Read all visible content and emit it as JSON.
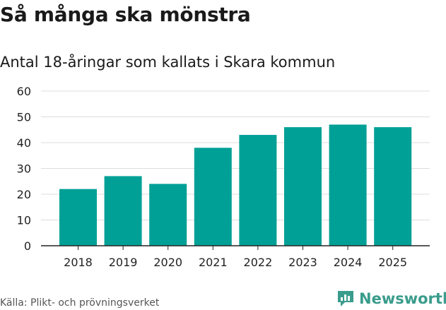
{
  "header": {
    "title": "Så många ska mönstra",
    "subtitle": "Antal 18-åringar som kallats i Skara kommun"
  },
  "footer": {
    "source": "Källa: Plikt- och prövningsverket",
    "brand": "Newsworthy"
  },
  "colors": {
    "bar": "#00a096",
    "grid": "#dddddd",
    "axis": "#222222",
    "brand": "#3a9c8c"
  },
  "chart_data": {
    "type": "bar",
    "title": "Så många ska mönstra",
    "subtitle": "Antal 18-åringar som kallats i Skara kommun",
    "xlabel": "",
    "ylabel": "",
    "categories": [
      "2018",
      "2019",
      "2020",
      "2021",
      "2022",
      "2023",
      "2024",
      "2025"
    ],
    "values": [
      22,
      27,
      24,
      38,
      43,
      46,
      47,
      46
    ],
    "ylim": [
      0,
      60
    ],
    "yticks": [
      0,
      10,
      20,
      30,
      40,
      50,
      60
    ],
    "grid": true
  }
}
